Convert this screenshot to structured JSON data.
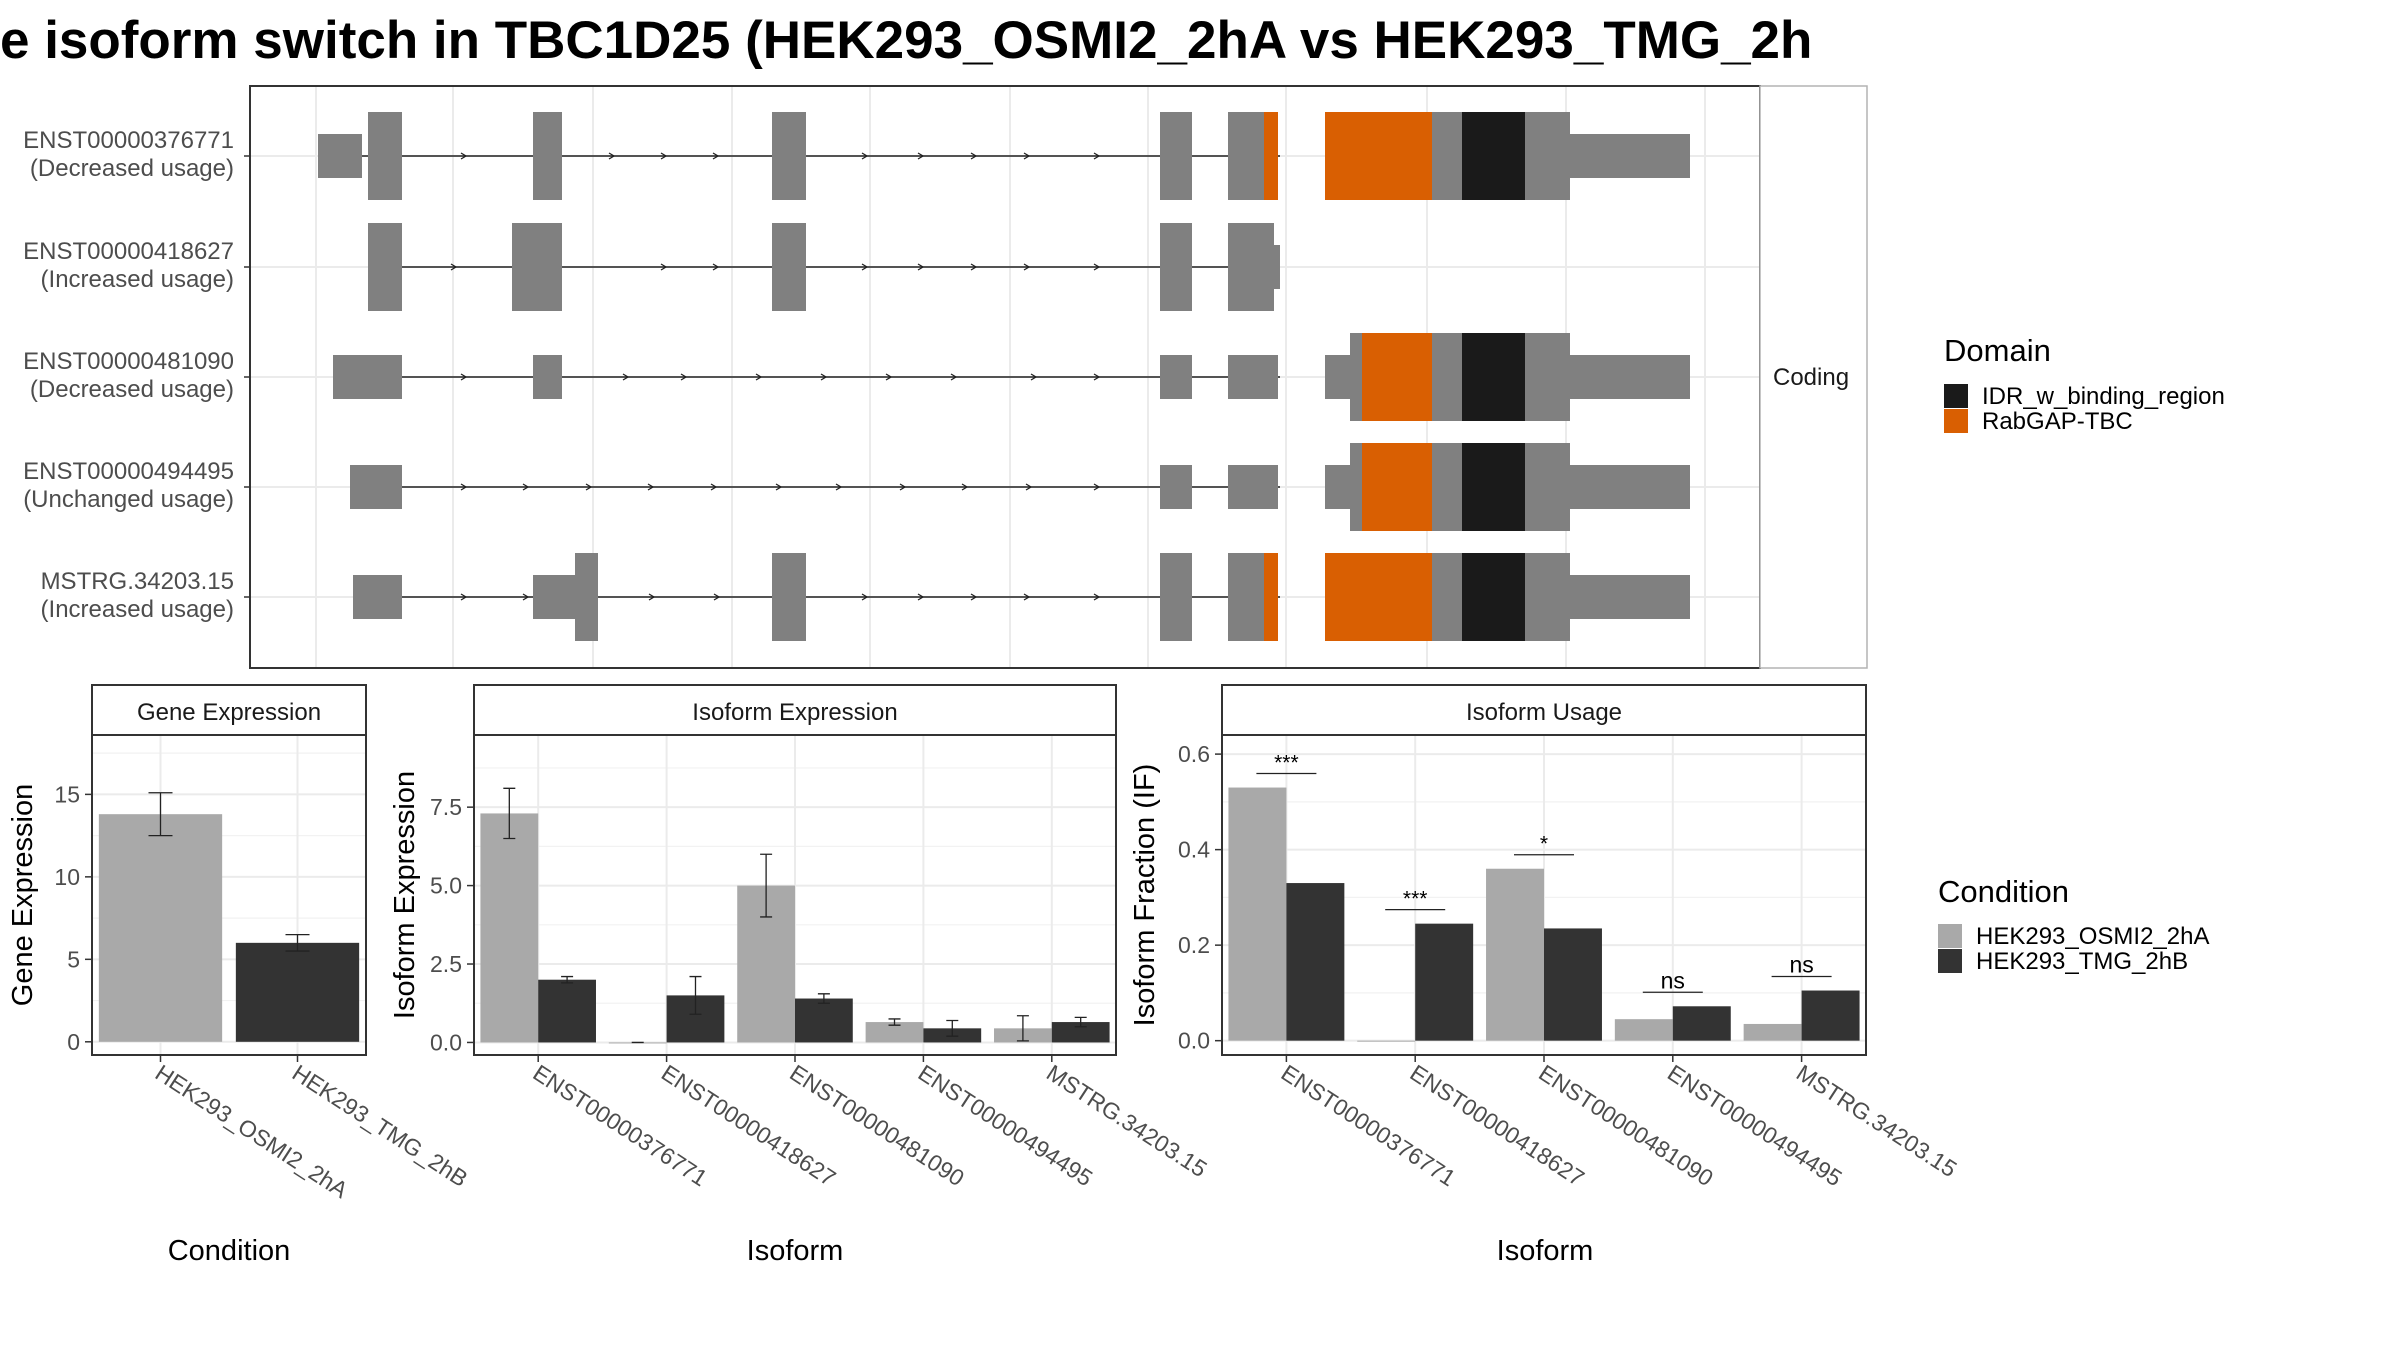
{
  "title": "e isoform switch in TBC1D25 (HEK293_OSMI2_2hA vs HEK293_TMG_2h",
  "colors": {
    "exon": "#808080",
    "rabgap": "#D95F02",
    "idr": "#1A1A1A",
    "cond_a": "#A9A9A9",
    "cond_b": "#333333",
    "grid": "#EBEBEB",
    "strip": "#FFFFFF"
  },
  "transcript_panel": {
    "strip_label": "Coding",
    "transcripts": [
      {
        "id": "ENST00000376771",
        "usage": "(Decreased usage)"
      },
      {
        "id": "ENST00000418627",
        "usage": "(Increased usage)"
      },
      {
        "id": "ENST00000481090",
        "usage": "(Decreased usage)"
      },
      {
        "id": "ENST00000494495",
        "usage": "(Unchanged usage)"
      },
      {
        "id": "MSTRG.34203.15",
        "usage": "(Increased usage)"
      }
    ]
  },
  "legend_domain": {
    "title": "Domain",
    "items": [
      {
        "label": "IDR_w_binding_region",
        "color": "#1A1A1A"
      },
      {
        "label": "RabGAP-TBC",
        "color": "#D95F02"
      }
    ]
  },
  "legend_condition": {
    "title": "Condition",
    "items": [
      {
        "label": "HEK293_OSMI2_2hA",
        "color": "#A9A9A9"
      },
      {
        "label": "HEK293_TMG_2hB",
        "color": "#333333"
      }
    ]
  },
  "chart_data": [
    {
      "type": "bar",
      "title": "Gene Expression",
      "xlabel": "Condition",
      "ylabel": "Gene Expression",
      "categories": [
        "HEK293_OSMI2_2hA",
        "HEK293_TMG_2hB"
      ],
      "values": [
        13.8,
        6.0
      ],
      "errors": [
        [
          12.5,
          15.1
        ],
        [
          5.5,
          6.5
        ]
      ],
      "ylim": [
        -0.8,
        18.6
      ],
      "yticks": [
        0,
        5,
        10,
        15
      ],
      "ytick_labels": [
        "0",
        "5",
        "10",
        "15"
      ]
    },
    {
      "type": "bar",
      "title": "Isoform Expression",
      "xlabel": "Isoform",
      "ylabel": "Isoform Expression",
      "categories": [
        "ENST00000376771",
        "ENST00000418627",
        "ENST00000481090",
        "ENST00000494495",
        "MSTRG.34203.15"
      ],
      "series": [
        {
          "name": "HEK293_OSMI2_2hA",
          "values": [
            7.3,
            0.0,
            5.0,
            0.65,
            0.45
          ],
          "errors": [
            [
              6.5,
              8.1
            ],
            [
              0.0,
              0.0
            ],
            [
              4.0,
              6.0
            ],
            [
              0.55,
              0.75
            ],
            [
              0.05,
              0.85
            ]
          ]
        },
        {
          "name": "HEK293_TMG_2hB",
          "values": [
            2.0,
            1.5,
            1.4,
            0.45,
            0.65
          ],
          "errors": [
            [
              1.9,
              2.1
            ],
            [
              0.9,
              2.1
            ],
            [
              1.25,
              1.55
            ],
            [
              0.2,
              0.7
            ],
            [
              0.5,
              0.8
            ]
          ]
        }
      ],
      "ylim": [
        -0.4,
        9.8
      ],
      "yticks": [
        0,
        2.5,
        5,
        7.5
      ],
      "ytick_labels": [
        "0.0",
        "2.5",
        "5.0",
        "7.5"
      ]
    },
    {
      "type": "bar",
      "title": "Isoform Usage",
      "xlabel": "Isoform",
      "ylabel": "Isoform Fraction (IF)",
      "categories": [
        "ENST00000376771",
        "ENST00000418627",
        "ENST00000481090",
        "ENST00000494495",
        "MSTRG.34203.15"
      ],
      "series": [
        {
          "name": "HEK293_OSMI2_2hA",
          "values": [
            0.53,
            0.0,
            0.36,
            0.045,
            0.035
          ]
        },
        {
          "name": "HEK293_TMG_2hB",
          "values": [
            0.33,
            0.245,
            0.235,
            0.072,
            0.105
          ]
        }
      ],
      "significance": [
        "***",
        "***",
        "*",
        "ns",
        "ns"
      ],
      "ylim": [
        -0.03,
        0.64
      ],
      "yticks": [
        0.0,
        0.2,
        0.4,
        0.6
      ],
      "ytick_labels": [
        "0.0",
        "0.2",
        "0.4",
        "0.6"
      ]
    }
  ]
}
